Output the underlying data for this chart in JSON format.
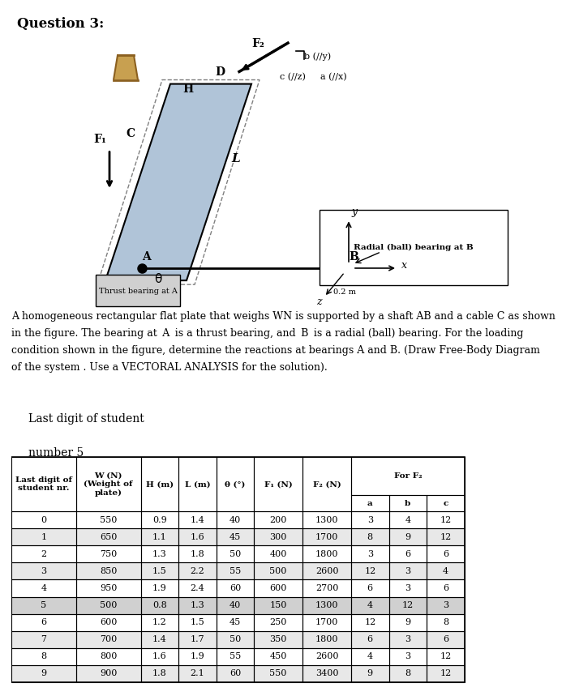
{
  "title": "Question 3:",
  "paragraph": "A homogeneous rectangular flat plate that weighs W N is supported by a shaft AB and a cable C as shown\nin the figure. The bearing at A is a thrust bearing, and B is a radial (ball) bearing. For the loading\ncondition shown in the figure, determine the reactions at bearings A and B. (Draw Free-Body Diagram\nof the system . Use a VECTORAL ANALYSIS for the solution).",
  "student_label": "Last digit of student\nnumber 5",
  "table_headers": [
    "Last digit of\nstudent nr.",
    "W (N)\n(Weight of\nplate)",
    "H (m)",
    "L (m)",
    "θ (°)",
    "F₁ (N)",
    "F₂ (N)",
    "a",
    "b",
    "c"
  ],
  "for_f2": "For F₂",
  "table_data": [
    [
      0,
      550,
      0.9,
      1.4,
      40,
      200,
      1300,
      3,
      4,
      12
    ],
    [
      1,
      650,
      1.1,
      1.6,
      45,
      300,
      1700,
      8,
      9,
      12
    ],
    [
      2,
      750,
      1.3,
      1.8,
      50,
      400,
      1800,
      3,
      6,
      6
    ],
    [
      3,
      850,
      1.5,
      2.2,
      55,
      500,
      2600,
      12,
      3,
      4
    ],
    [
      4,
      950,
      1.9,
      2.4,
      60,
      600,
      2700,
      6,
      3,
      6
    ],
    [
      5,
      500,
      0.8,
      1.3,
      40,
      150,
      1300,
      4,
      12,
      3
    ],
    [
      6,
      600,
      1.2,
      1.5,
      45,
      250,
      1700,
      12,
      9,
      8
    ],
    [
      7,
      700,
      1.4,
      1.7,
      50,
      350,
      1800,
      6,
      3,
      6
    ],
    [
      8,
      800,
      1.6,
      1.9,
      55,
      450,
      2600,
      4,
      3,
      12
    ],
    [
      9,
      900,
      1.8,
      2.1,
      60,
      550,
      3400,
      9,
      8,
      12
    ]
  ],
  "highlight_row": 5,
  "bg_white": "#ffffff",
  "bg_gray": "#e8e8e8",
  "bg_dark": "#c8c8c8"
}
